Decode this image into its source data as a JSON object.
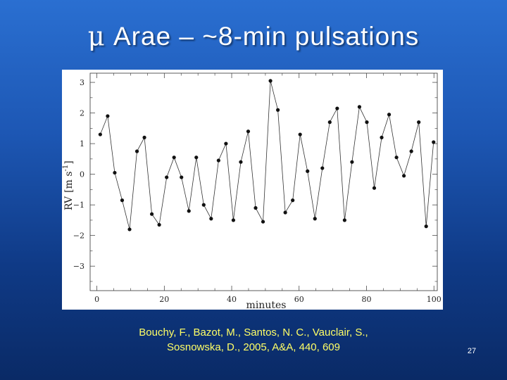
{
  "slide": {
    "title_symbol": "μ",
    "title_text": " Arae – ~8-min pulsations",
    "caption_line1": "Bouchy, F., Bazot, M., Santos, N. C., Vauclair, S.,",
    "caption_line2": "Sosnowska, D., 2005, A&A, 440, 609",
    "page_number": "27",
    "colors": {
      "background_top": "#2a6fd1",
      "background_bottom": "#0a2a66",
      "title": "#ffffff",
      "caption": "#ffff66"
    }
  },
  "chart_data": {
    "type": "line",
    "title": "",
    "xlabel": "minutes",
    "ylabel_main": "RV",
    "ylabel_units": "[m s",
    "ylabel_exp": "-1",
    "ylabel_close": "]",
    "xlim": [
      -2,
      101
    ],
    "ylim": [
      -3.8,
      3.3
    ],
    "xticks": [
      0,
      20,
      40,
      60,
      80,
      100
    ],
    "xtick_labels": [
      "0",
      "20",
      "40",
      "60",
      "80",
      "100"
    ],
    "yticks": [
      3,
      2,
      1,
      0,
      -1,
      -2,
      -3
    ],
    "ytick_labels": [
      "3",
      "2",
      "1",
      "0",
      "−1",
      "−2",
      "−3"
    ],
    "markers": "filled-circle",
    "grid": false,
    "series": [
      {
        "x": [
          1,
          3.2,
          5.3,
          7.5,
          9.7,
          11.9,
          14.1,
          16.3,
          18.5,
          20.7,
          22.9,
          25.1,
          27.3,
          29.5,
          31.7,
          33.9,
          36.1,
          38.3,
          40.5,
          42.7,
          44.9,
          47.1,
          49.3,
          51.5,
          53.7,
          55.9,
          58.1,
          60.3,
          62.5,
          64.7,
          66.9,
          69.1,
          71.3,
          73.5,
          75.7,
          77.9,
          80.1,
          82.3,
          84.5,
          86.7,
          88.9,
          91.1,
          93.3,
          95.5,
          97.7,
          99.9
        ],
        "y": [
          1.3,
          1.9,
          0.05,
          -0.85,
          -1.8,
          0.75,
          1.2,
          -1.3,
          -1.65,
          -0.1,
          0.55,
          -0.1,
          -1.2,
          0.55,
          -1.0,
          -1.45,
          0.45,
          1.0,
          -1.5,
          0.4,
          1.4,
          -1.1,
          -1.55,
          3.05,
          2.1,
          -1.25,
          -0.85,
          1.3,
          0.1,
          -1.45,
          0.2,
          1.7,
          2.15,
          -1.5,
          0.4,
          2.2,
          1.7,
          -0.45,
          1.2,
          1.95,
          0.55,
          -0.05,
          0.75,
          1.7,
          -1.7,
          1.05
        ]
      }
    ]
  }
}
